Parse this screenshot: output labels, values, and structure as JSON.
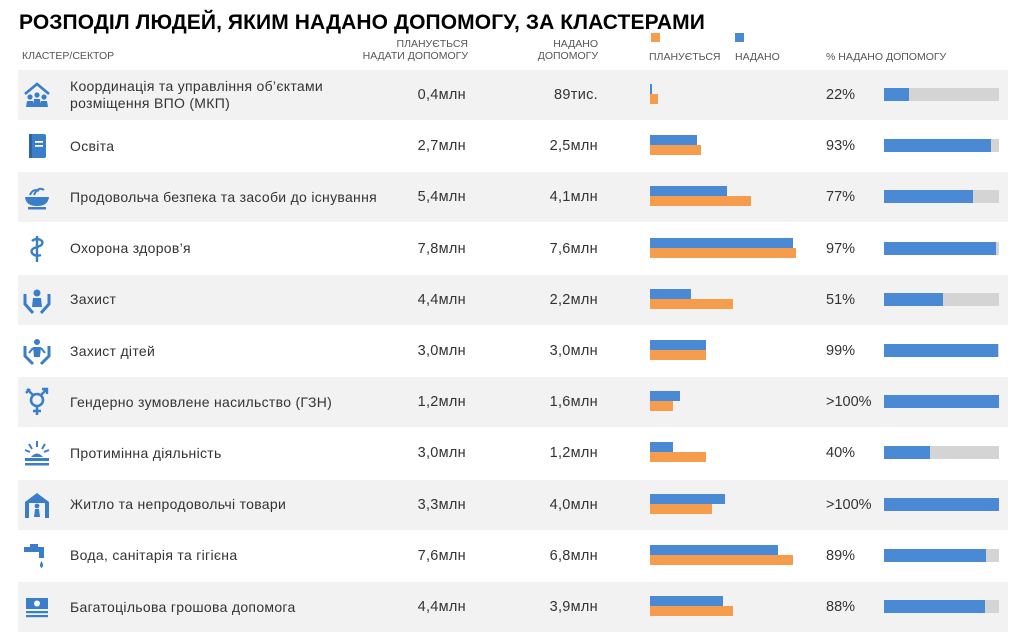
{
  "title": "РОЗПОДІЛ ЛЮДЕЙ, ЯКИМ НАДАНО ДОПОМОГУ, ЗА КЛАСТЕРАМИ",
  "headers": {
    "cluster": "КЛАСТЕР/СЕКТОР",
    "planned_line1": "ПЛАНУЄТЬСЯ",
    "planned_line2": "НАДАТИ ДОПОМОГУ",
    "provided_line1": "НАДАНО",
    "provided_line2": "ДОПОМОГУ",
    "legend_planned": "ПЛАНУЄТЬСЯ",
    "legend_provided": "НАДАНО",
    "percent": "% НАДАНО ДОПОМОГУ"
  },
  "colors": {
    "planned": "#f59d4c",
    "provided": "#4a8ad4",
    "track": "#d4d4d4",
    "icon": "#3a7dc9"
  },
  "rows": [
    {
      "icon": "shelter-coordination-icon",
      "label": "Координація та управління об’єктами розміщення ВПО (МКП)",
      "planned": "0,4млн",
      "provided": "89тис.",
      "percent": "22%"
    },
    {
      "icon": "book-icon",
      "label": "Освіта",
      "planned": "2,7млн",
      "provided": "2,5млн",
      "percent": "93%"
    },
    {
      "icon": "food-bowl-icon",
      "label": "Продовольча безпека та засоби до існування",
      "planned": "5,4млн",
      "provided": "4,1млн",
      "percent": "77%"
    },
    {
      "icon": "health-icon",
      "label": "Охорона здоров’я",
      "planned": "7,8млн",
      "provided": "7,6млн",
      "percent": "97%"
    },
    {
      "icon": "protection-icon",
      "label": "Захист",
      "planned": "4,4млн",
      "provided": "2,2млн",
      "percent": "51%"
    },
    {
      "icon": "child-protection-icon",
      "label": "Захист дітей",
      "planned": "3,0млн",
      "provided": "3,0млн",
      "percent": "99%"
    },
    {
      "icon": "gender-icon",
      "label": "Гендерно зумовлене насильство (ГЗН)",
      "planned": "1,2млн",
      "provided": "1,6млн",
      "percent": ">100%"
    },
    {
      "icon": "mine-action-icon",
      "label": "Протимінна діяльність",
      "planned": "3,0млн",
      "provided": "1,2млн",
      "percent": "40%"
    },
    {
      "icon": "shelter-nfi-icon",
      "label": "Житло та непродовольчі товари",
      "planned": "3,3млн",
      "provided": "4,0млн",
      "percent": ">100%"
    },
    {
      "icon": "water-tap-icon",
      "label": "Вода, санітарія та гігієна",
      "planned": "7,6млн",
      "provided": "6,8млн",
      "percent": "89%"
    },
    {
      "icon": "cash-icon",
      "label": "Багатоцільова грошова допомога",
      "planned": "4,4млн",
      "provided": "3,9млн",
      "percent": "88%"
    }
  ],
  "chart_data": {
    "type": "bar",
    "categories": [
      "Координація та управління об’єктами розміщення ВПО (МКП)",
      "Освіта",
      "Продовольча безпека та засоби до існування",
      "Охорона здоров’я",
      "Захист",
      "Захист дітей",
      "Гендерно зумовлене насильство (ГЗН)",
      "Протимінна діяльність",
      "Житло та непродовольчі товари",
      "Вода, санітарія та гігієна",
      "Багатоцільова грошова допомога"
    ],
    "series": [
      {
        "name": "ПЛАНУЄТЬСЯ",
        "values": [
          0.4,
          2.7,
          5.4,
          7.8,
          4.4,
          3.0,
          1.2,
          3.0,
          3.3,
          7.6,
          4.4
        ]
      },
      {
        "name": "НАДАНО",
        "values": [
          0.089,
          2.5,
          4.1,
          7.6,
          2.2,
          3.0,
          1.6,
          1.2,
          4.0,
          6.8,
          3.9
        ]
      }
    ],
    "percent_provided": [
      22,
      93,
      77,
      97,
      51,
      99,
      100,
      40,
      100,
      89,
      88
    ],
    "unit": "млн",
    "xlim": [
      0,
      8
    ]
  }
}
